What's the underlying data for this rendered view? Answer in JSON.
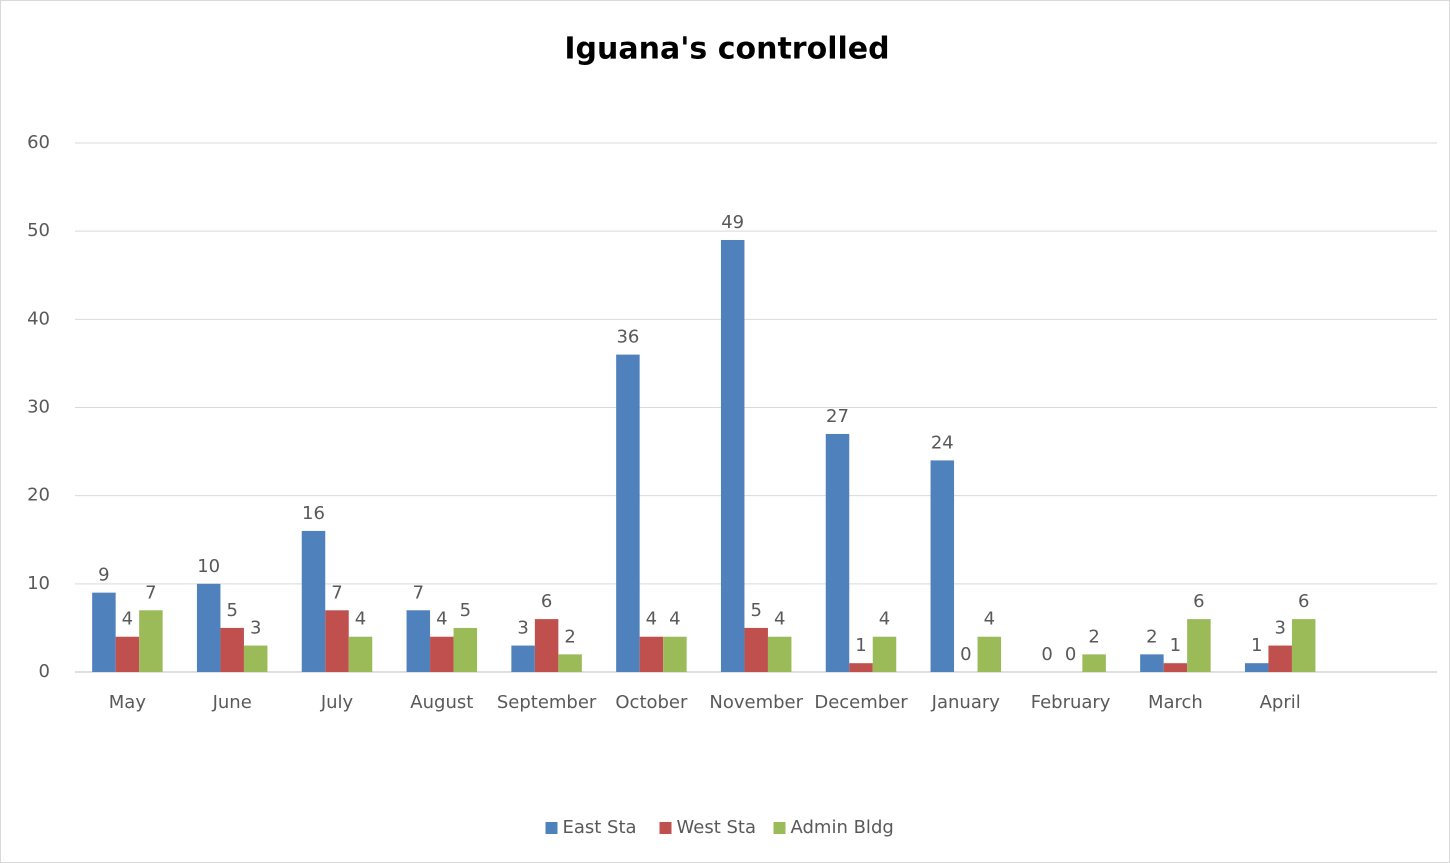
{
  "chart_data": {
    "type": "bar",
    "title": "Iguana's controlled",
    "categories": [
      "May",
      "June",
      "July",
      "August",
      "September",
      "October",
      "November",
      "December",
      "January",
      "February",
      "March",
      "April"
    ],
    "series": [
      {
        "name": "East Sta",
        "color": "#4f81bd",
        "values": [
          9,
          10,
          16,
          7,
          3,
          36,
          49,
          27,
          24,
          0,
          2,
          1
        ]
      },
      {
        "name": "West Sta",
        "color": "#c0504d",
        "values": [
          4,
          5,
          7,
          4,
          6,
          4,
          5,
          1,
          0,
          0,
          1,
          3
        ]
      },
      {
        "name": "Admin Bldg",
        "color": "#9bbb59",
        "values": [
          7,
          3,
          4,
          5,
          2,
          4,
          4,
          4,
          4,
          2,
          6,
          6
        ]
      }
    ],
    "ylim": [
      0,
      60
    ],
    "yticks": [
      0,
      10,
      20,
      30,
      40,
      50,
      60
    ],
    "grid": true,
    "legend": "bottom"
  }
}
